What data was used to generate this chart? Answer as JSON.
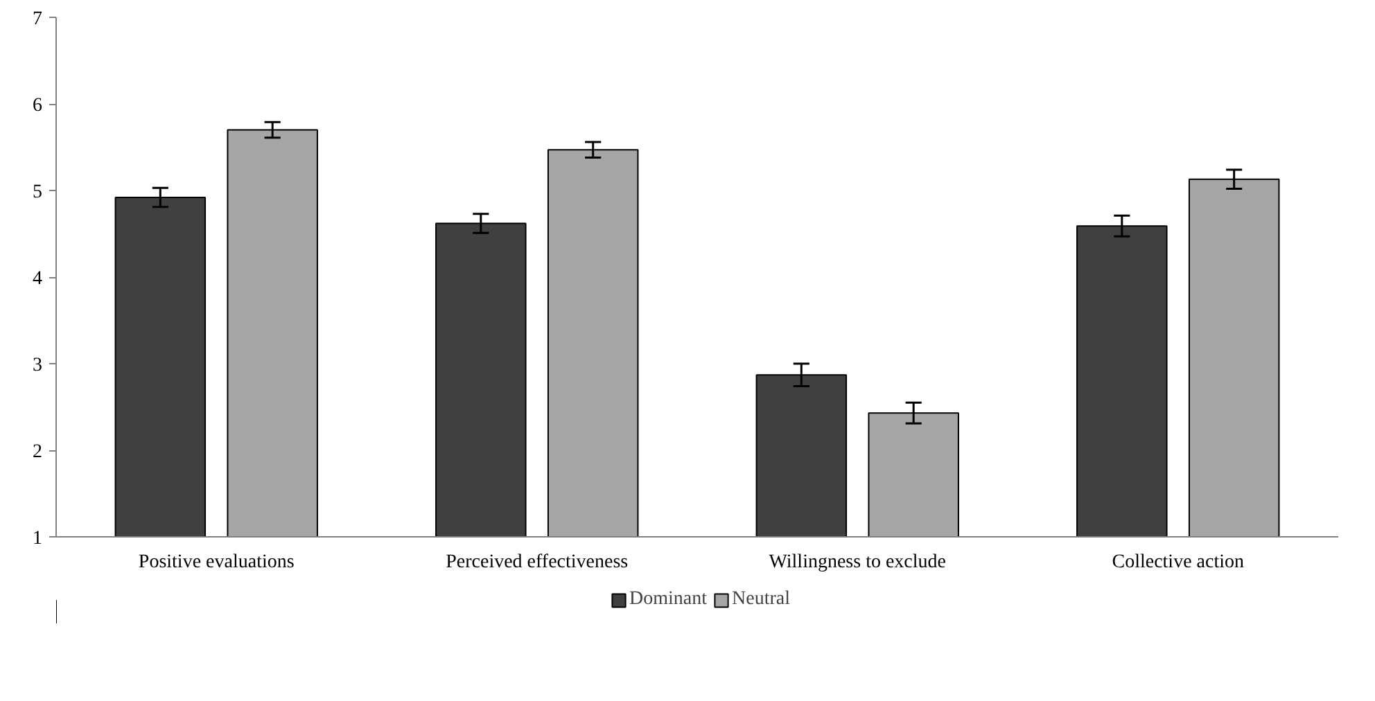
{
  "chart_data": {
    "type": "bar",
    "categories": [
      "Positive evaluations",
      "Perceived effectiveness",
      "Willingness to exclude",
      "Collective action"
    ],
    "series": [
      {
        "name": "Dominant",
        "color": "#404040",
        "values": [
          4.92,
          4.62,
          2.87,
          4.59
        ],
        "errors": [
          0.11,
          0.11,
          0.13,
          0.12
        ]
      },
      {
        "name": "Neutral",
        "color": "#a6a6a6",
        "values": [
          5.7,
          5.47,
          2.43,
          5.13
        ],
        "errors": [
          0.09,
          0.09,
          0.12,
          0.11
        ]
      }
    ],
    "ylim": [
      1,
      7
    ],
    "yticks": [
      1,
      2,
      3,
      4,
      5,
      6,
      7
    ],
    "grid": false,
    "legend": "bottom"
  }
}
